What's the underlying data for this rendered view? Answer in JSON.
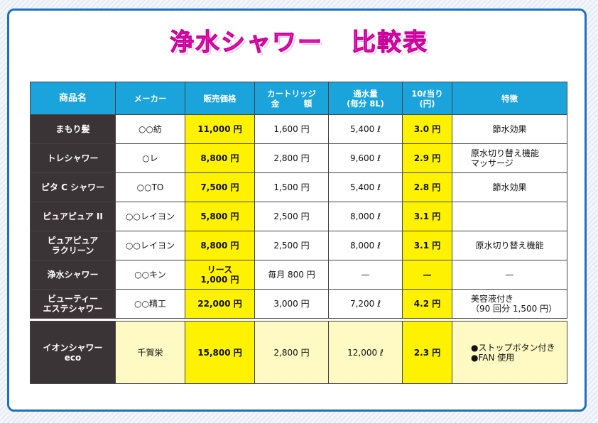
{
  "title": {
    "main": "浄水シャワー",
    "sub": "比較表"
  },
  "headers": [
    {
      "line1": "商品名",
      "line2": ""
    },
    {
      "line1": "メーカー",
      "line2": ""
    },
    {
      "line1": "販売価格",
      "line2": ""
    },
    {
      "line1": "カートリッジ",
      "line2": "金　　　額"
    },
    {
      "line1": "通水量",
      "line2": "(毎分 8L)"
    },
    {
      "line1": "10ℓ当り",
      "line2": "(円)"
    },
    {
      "line1": "特徴",
      "line2": ""
    }
  ],
  "rows": [
    {
      "name1": "まもり髪",
      "name2": "",
      "maker": "○○紡",
      "price1": "11,000 円",
      "price2": "",
      "cartridge": "1,600 円",
      "flow": "5,400 ℓ",
      "per10": "3.0 円",
      "feat1": "節水効果",
      "feat2": ""
    },
    {
      "name1": "トレシャワー",
      "name2": "",
      "maker": "○レ",
      "price1": "8,800 円",
      "price2": "",
      "cartridge": "2,800 円",
      "flow": "9,600 ℓ",
      "per10": "2.9 円",
      "feat1": "原水切り替え機能",
      "feat2": "マッサージ"
    },
    {
      "name1": "ピタ C シャワー",
      "name2": "",
      "maker": "○○TO",
      "price1": "7,500 円",
      "price2": "",
      "cartridge": "1,500 円",
      "flow": "5,400 ℓ",
      "per10": "2.8 円",
      "feat1": "節水効果",
      "feat2": ""
    },
    {
      "name1": "ピュアピュア II",
      "name2": "",
      "maker": "○○レイヨン",
      "price1": "5,800 円",
      "price2": "",
      "cartridge": "2,500 円",
      "flow": "8,000 ℓ",
      "per10": "3.1 円",
      "feat1": "",
      "feat2": ""
    },
    {
      "name1": "ピュアピュア",
      "name2": "ラクリーン",
      "maker": "○○レイヨン",
      "price1": "8,800 円",
      "price2": "",
      "cartridge": "2,500 円",
      "flow": "8,000 ℓ",
      "per10": "3.1 円",
      "feat1": "原水切り替え機能",
      "feat2": ""
    },
    {
      "name1": "浄水シャワー",
      "name2": "",
      "maker": "○○キン",
      "price1": "リース",
      "price2": "1,000 円",
      "cartridge": "毎月 800 円",
      "flow": "—",
      "per10": "—",
      "feat1": "—",
      "feat2": ""
    },
    {
      "name1": "ビューティー",
      "name2": "エステシャワー",
      "maker": "○○精工",
      "price1": "22,000 円",
      "price2": "",
      "cartridge": "3,000 円",
      "flow": "7,200 ℓ",
      "per10": "4.2 円",
      "feat1": "美容液付き",
      "feat2": "（90 回分 1,500 円）"
    }
  ],
  "highlight_row": {
    "name1": "イオンシャワー",
    "name2": "eco",
    "maker": "千賀栄",
    "price": "15,800 円",
    "cartridge": "2,800 円",
    "flow": "12,000 ℓ",
    "per10": "2.3 円",
    "feat1": "●ストップボタン付き",
    "feat2": "●FAN 使用"
  },
  "colors": {
    "title_pink": "#ff2fbf",
    "header_blue": "#1ba3db",
    "name_dark": "#3a3436",
    "highlight_yellow": "#fff200",
    "pale_yellow": "#fff9c4",
    "frame_blue": "#1f6fbf"
  }
}
